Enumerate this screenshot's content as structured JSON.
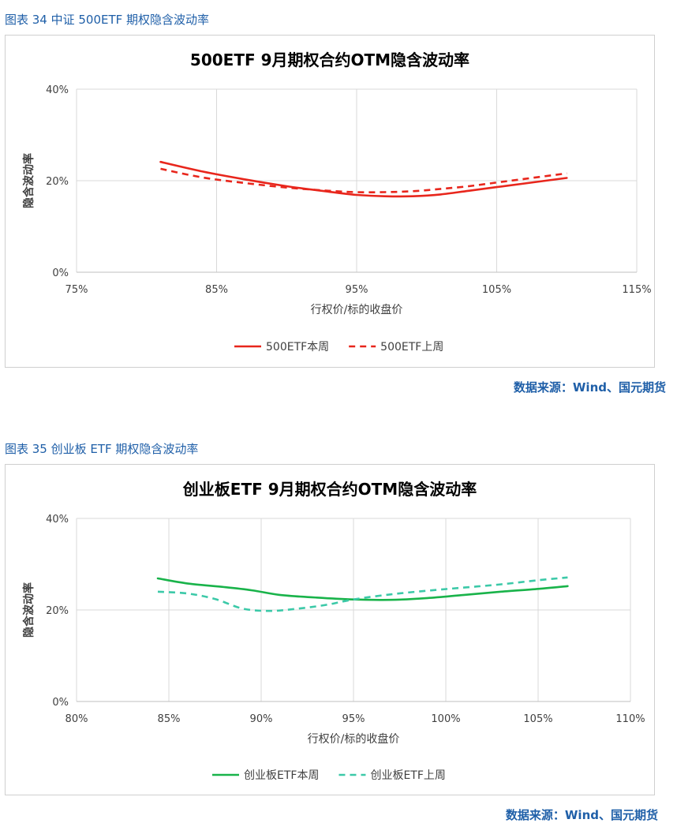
{
  "captions": {
    "fig1": "图表 34 中证 500ETF 期权隐含波动率",
    "fig2": "图表 35 创业板 ETF 期权隐含波动率"
  },
  "sources": {
    "fig1": "数据来源：Wind、国元期货",
    "fig2": "数据来源：Wind、国元期货"
  },
  "colors": {
    "caption": "#1f5fa8",
    "red": "#e8261c",
    "green": "#19b34a",
    "teal": "#3cc9a8",
    "grid": "#d9d9d9"
  },
  "chart_data": [
    {
      "type": "line",
      "title": "500ETF  9月期权合约OTM隐含波动率",
      "xlabel": "行权价/标的收盘价",
      "ylabel": "隐含波动率",
      "xlim": [
        75,
        115
      ],
      "ylim": [
        0,
        40
      ],
      "xticks": [
        75,
        85,
        95,
        105,
        115
      ],
      "xtick_labels": [
        "75%",
        "85%",
        "95%",
        "105%",
        "115%"
      ],
      "yticks": [
        0,
        20,
        40
      ],
      "ytick_labels": [
        "0%",
        "20%",
        "40%"
      ],
      "grid": true,
      "legend_position": "bottom",
      "series": [
        {
          "name": "500ETF本周",
          "color": "#e8261c",
          "dash": false,
          "x": [
            81,
            84,
            87,
            90,
            93,
            95,
            97,
            99,
            101,
            103,
            105,
            107,
            110
          ],
          "values": [
            24.1,
            22.0,
            20.3,
            18.8,
            17.6,
            16.9,
            16.6,
            16.6,
            17.0,
            17.8,
            18.6,
            19.4,
            20.6
          ]
        },
        {
          "name": "500ETF上周",
          "color": "#e8261c",
          "dash": true,
          "x": [
            81,
            84,
            87,
            90,
            93,
            95,
            97,
            99,
            101,
            103,
            105,
            107,
            110
          ],
          "values": [
            22.6,
            20.7,
            19.5,
            18.5,
            17.8,
            17.5,
            17.5,
            17.7,
            18.2,
            18.8,
            19.6,
            20.4,
            21.6
          ]
        }
      ]
    },
    {
      "type": "line",
      "title": "创业板ETF  9月期权合约OTM隐含波动率",
      "xlabel": "行权价/标的收盘价",
      "ylabel": "隐含波动率",
      "xlim": [
        80,
        110
      ],
      "ylim": [
        0,
        40
      ],
      "xticks": [
        80,
        85,
        90,
        95,
        100,
        105,
        110
      ],
      "xtick_labels": [
        "80%",
        "85%",
        "90%",
        "95%",
        "100%",
        "105%",
        "110%"
      ],
      "yticks": [
        0,
        20,
        40
      ],
      "ytick_labels": [
        "0%",
        "20%",
        "40%"
      ],
      "grid": true,
      "legend_position": "bottom",
      "series": [
        {
          "name": "创业板ETF本周",
          "color": "#19b34a",
          "dash": false,
          "x": [
            84.4,
            86,
            88,
            89.5,
            91,
            93,
            95,
            97,
            99,
            101,
            103,
            105,
            106.6
          ],
          "values": [
            26.9,
            25.8,
            25.0,
            24.3,
            23.3,
            22.7,
            22.3,
            22.2,
            22.6,
            23.3,
            24.0,
            24.6,
            25.2
          ]
        },
        {
          "name": "创业板ETF上周",
          "color": "#3cc9a8",
          "dash": true,
          "x": [
            84.4,
            86,
            87.5,
            89,
            90.5,
            92,
            93.5,
            95,
            97,
            99,
            101,
            103,
            105,
            106.6
          ],
          "values": [
            24.0,
            23.6,
            22.4,
            20.3,
            19.8,
            20.3,
            21.1,
            22.3,
            23.4,
            24.2,
            24.9,
            25.6,
            26.5,
            27.1
          ]
        }
      ]
    }
  ]
}
